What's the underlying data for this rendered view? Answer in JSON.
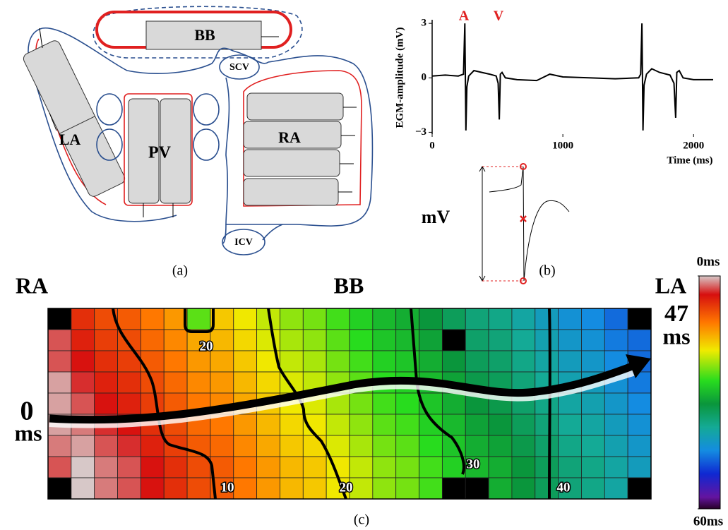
{
  "panel_a": {
    "labels": {
      "bb": "BB",
      "scv": "SCV",
      "la": "LA",
      "pv": "PV",
      "ra": "RA",
      "icv": "ICV"
    },
    "caption": "(a)"
  },
  "chart_data": {
    "type": "line",
    "y_label": "EGM-amplitude (mV)",
    "x_label": "Time (ms)",
    "annotations": [
      "A",
      "V"
    ],
    "x": [
      0,
      100,
      200,
      240,
      250,
      258,
      266,
      280,
      320,
      380,
      440,
      490,
      505,
      514,
      522,
      535,
      560,
      650,
      800,
      900,
      1000,
      1200,
      1400,
      1580,
      1595,
      1605,
      1613,
      1621,
      1640,
      1680,
      1740,
      1820,
      1850,
      1863,
      1872,
      1890,
      1920,
      2000,
      2150
    ],
    "values": [
      0.1,
      0.15,
      0.1,
      0.2,
      3.0,
      -2.9,
      -0.5,
      0.1,
      0.4,
      0.3,
      0.2,
      0.1,
      -0.3,
      -2.3,
      0.2,
      0.3,
      0,
      -0.1,
      -0.15,
      0.2,
      0.05,
      0,
      -0.05,
      0,
      0.2,
      3.0,
      -2.9,
      -0.4,
      0.2,
      0.5,
      0.3,
      0.15,
      -0.3,
      -2.2,
      0.3,
      0.4,
      0,
      -0.1,
      -0.1
    ],
    "color": "#000000",
    "xlim": [
      0,
      2150
    ],
    "ylim": [
      -3.1,
      3.2
    ],
    "xticks": [
      0,
      1000,
      2000
    ],
    "yticks": [
      {
        "value": -3,
        "label": "−3"
      },
      0,
      3
    ],
    "caption": "(b)"
  },
  "inset": {
    "label": "mV"
  },
  "heatmap": {
    "regions": [
      "RA",
      "BB",
      "LA"
    ],
    "start": {
      "time": 0,
      "unit": "ms"
    },
    "end": {
      "time": 47,
      "unit": "ms"
    },
    "rows": [
      [
        null,
        7,
        9,
        10,
        12,
        14,
        25,
        17,
        19,
        21,
        23,
        24,
        26,
        28,
        30,
        31,
        33,
        35,
        37,
        38,
        40,
        42,
        44,
        45,
        47,
        null
      ],
      [
        3,
        6,
        8,
        9,
        11,
        13,
        15,
        16,
        18,
        20,
        22,
        23,
        25,
        27,
        29,
        30,
        32,
        null,
        36,
        37,
        39,
        41,
        43,
        44,
        46,
        47
      ],
      [
        3,
        5,
        7,
        8,
        10,
        12,
        14,
        15,
        17,
        19,
        21,
        22,
        24,
        26,
        28,
        29,
        31,
        33,
        35,
        36,
        38,
        40,
        42,
        43,
        45,
        47
      ],
      [
        1,
        4,
        6,
        7,
        9,
        11,
        13,
        14,
        16,
        18,
        20,
        21,
        23,
        25,
        27,
        28,
        30,
        32,
        34,
        35,
        37,
        39,
        41,
        42,
        44,
        46
      ],
      [
        1,
        3,
        5,
        6,
        8,
        10,
        12,
        13,
        15,
        17,
        19,
        20,
        22,
        24,
        26,
        27,
        29,
        31,
        33,
        34,
        36,
        38,
        40,
        41,
        43,
        45
      ],
      [
        1,
        2,
        4,
        5,
        7,
        9,
        11,
        12,
        14,
        16,
        18,
        19,
        21,
        23,
        25,
        26,
        28,
        30,
        32,
        33,
        35,
        37,
        39,
        40,
        42,
        44
      ],
      [
        2,
        1,
        3,
        4,
        6,
        8,
        10,
        11,
        13,
        15,
        17,
        18,
        20,
        22,
        24,
        25,
        27,
        29,
        31,
        32,
        34,
        36,
        38,
        39,
        41,
        43
      ],
      [
        3,
        0,
        2,
        3,
        5,
        7,
        9,
        10,
        12,
        14,
        16,
        17,
        19,
        21,
        23,
        24,
        26,
        28,
        30,
        31,
        33,
        35,
        37,
        38,
        40,
        42
      ],
      [
        null,
        0,
        2,
        3,
        5,
        7,
        9,
        10,
        12,
        14,
        16,
        17,
        19,
        21,
        23,
        24,
        26,
        null,
        null,
        31,
        33,
        35,
        37,
        38,
        40,
        null
      ]
    ],
    "contours": [
      10,
      20,
      20,
      30,
      40
    ],
    "colorbar_ticks": [
      {
        "value": 0,
        "label": "0ms"
      },
      {
        "value": 60,
        "label": "60ms"
      }
    ],
    "caption": "(c)"
  }
}
